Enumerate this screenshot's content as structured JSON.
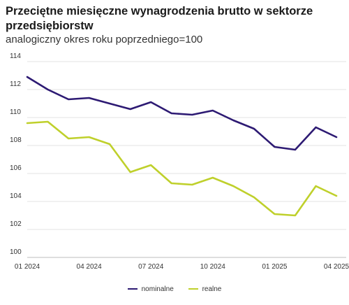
{
  "chart_data": {
    "type": "line",
    "title": "Przeciętne miesięczne wynagrodzenia brutto w sektorze przedsiębiorstw",
    "subtitle": "analogiczny okres roku poprzedniego=100",
    "xlabel": "",
    "ylabel": "",
    "x": [
      "01 2024",
      "02 2024",
      "03 2024",
      "04 2024",
      "05 2024",
      "06 2024",
      "07 2024",
      "08 2024",
      "09 2024",
      "10 2024",
      "11 2024",
      "12 2024",
      "01 2025",
      "02 2025",
      "03 2025",
      "04 2025"
    ],
    "x_ticks": [
      {
        "index": 0,
        "label": "01 2024"
      },
      {
        "index": 3,
        "label": "04 2024"
      },
      {
        "index": 6,
        "label": "07 2024"
      },
      {
        "index": 9,
        "label": "10 2024"
      },
      {
        "index": 12,
        "label": "01 2025"
      },
      {
        "index": 15,
        "label": "04 2025"
      }
    ],
    "ylim": [
      100,
      114
    ],
    "y_ticks": [
      100,
      102,
      104,
      106,
      108,
      110,
      112,
      114
    ],
    "grid": "horizontal",
    "legend_position": "bottom",
    "series": [
      {
        "name": "nominalne",
        "color": "#2d1a73",
        "values": [
          112.9,
          112.0,
          111.3,
          111.4,
          111.0,
          110.6,
          111.1,
          110.3,
          110.2,
          110.5,
          109.8,
          109.2,
          107.9,
          107.7,
          109.3,
          108.6
        ]
      },
      {
        "name": "realne",
        "color": "#bfd02b",
        "values": [
          109.6,
          109.7,
          108.5,
          108.6,
          108.1,
          106.1,
          106.6,
          105.3,
          105.2,
          105.7,
          105.1,
          104.3,
          103.1,
          103.0,
          105.1,
          104.4
        ]
      }
    ]
  }
}
